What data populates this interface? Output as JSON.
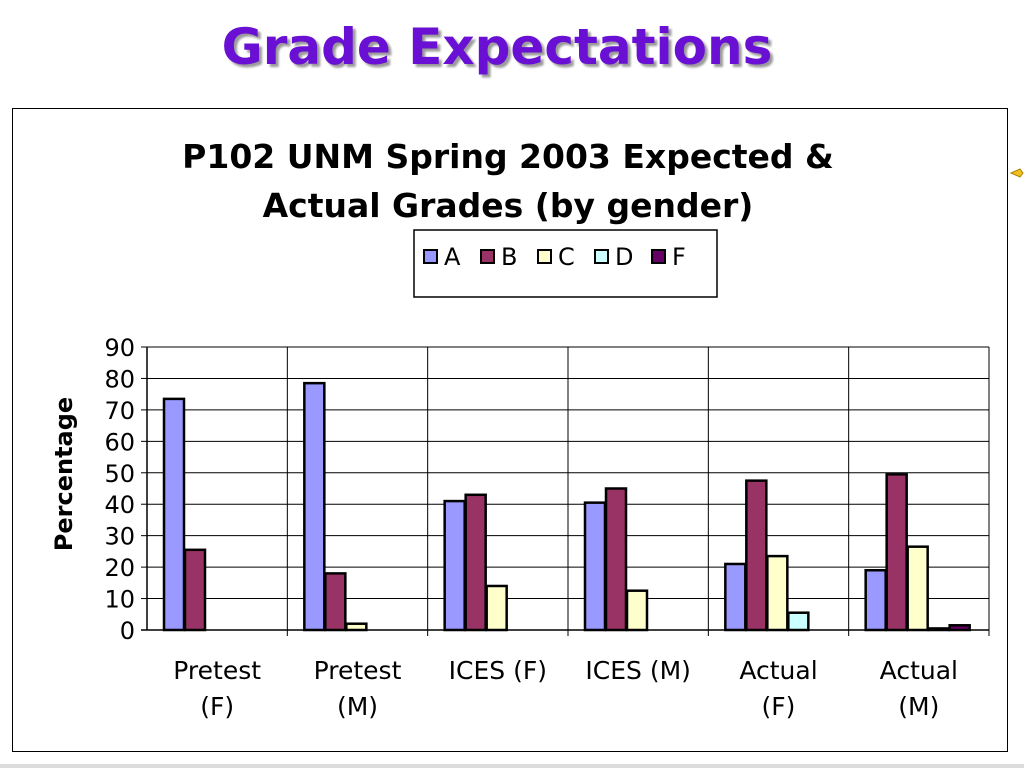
{
  "slide": {
    "title": "Grade Expectations"
  },
  "colors": {
    "title": "#6a0fd4",
    "A": "#9999ff",
    "B": "#993366",
    "C": "#ffffcc",
    "D": "#ccffff",
    "F": "#660066"
  },
  "chart_data": {
    "type": "bar",
    "title_lines": [
      "P102 UNM Spring 2003 Expected &",
      "Actual Grades (by gender)"
    ],
    "xlabel": "",
    "ylabel": "Percentage",
    "ylim": [
      0,
      90
    ],
    "yticks": [
      "0",
      "10",
      "20",
      "30",
      "40",
      "50",
      "60",
      "70",
      "80",
      "90"
    ],
    "grid": true,
    "legend_position": "top",
    "categories": [
      [
        "Pretest",
        "(F)"
      ],
      [
        "Pretest",
        "(M)"
      ],
      [
        "ICES (F)"
      ],
      [
        "ICES (M)"
      ],
      [
        "Actual",
        "(F)"
      ],
      [
        "Actual",
        "(M)"
      ]
    ],
    "series": [
      {
        "name": "A",
        "values": [
          73.5,
          78.5,
          41,
          40.5,
          21,
          19
        ]
      },
      {
        "name": "B",
        "values": [
          25.5,
          18,
          43,
          45,
          47.5,
          49.5
        ]
      },
      {
        "name": "C",
        "values": [
          0,
          2,
          14,
          12.5,
          23.5,
          26.5
        ]
      },
      {
        "name": "D",
        "values": [
          0,
          0,
          0,
          0,
          5.5,
          0.5
        ]
      },
      {
        "name": "F",
        "values": [
          0,
          0,
          0,
          0,
          0,
          1.5
        ]
      }
    ]
  }
}
